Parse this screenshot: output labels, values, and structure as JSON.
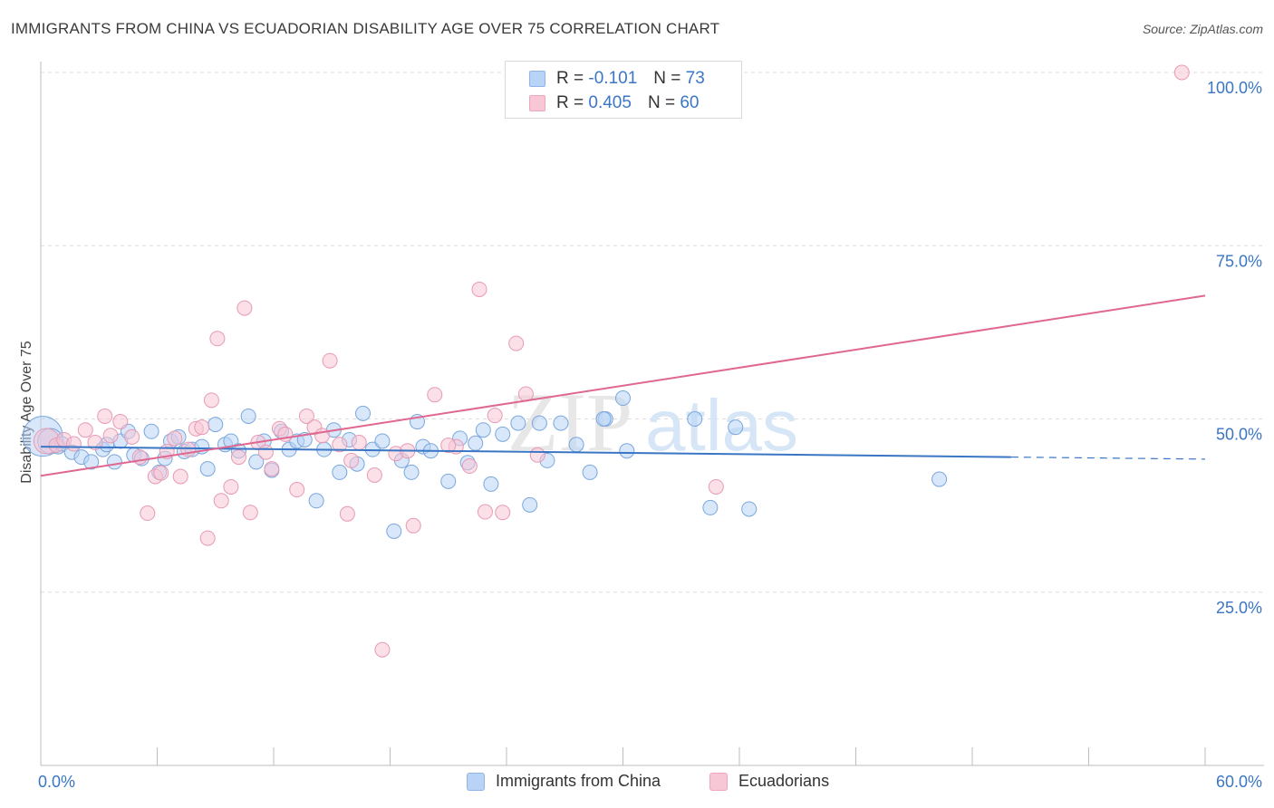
{
  "title": "IMMIGRANTS FROM CHINA VS ECUADORIAN DISABILITY AGE OVER 75 CORRELATION CHART",
  "source": "Source: ZipAtlas.com",
  "watermark": {
    "part1": "ZIP",
    "part2": "atlas"
  },
  "legend": {
    "r_label": "R =",
    "n_label": "N =",
    "series": [
      {
        "r": "-0.101",
        "n": "73",
        "color": "#b8d3f5"
      },
      {
        "r": "0.405",
        "n": "60",
        "color": "#f8c7d6"
      }
    ]
  },
  "bottom_legend": [
    "Immigrants from China",
    "Ecuadorians"
  ],
  "chart_data": {
    "type": "scatter",
    "ylabel": "Disability Age Over 75",
    "xlim": [
      0,
      60
    ],
    "ylim": [
      0,
      100
    ],
    "x_tick_labels": [
      "0.0%",
      "60.0%"
    ],
    "y_tick_labels": [
      "25.0%",
      "50.0%",
      "75.0%",
      "100.0%"
    ],
    "y_ticks": [
      25,
      50,
      75,
      100
    ],
    "grid": true,
    "colors": {
      "china": "#3a76c4",
      "china_fill": "#b8d3f5",
      "ecuador": "#e0678f",
      "ecuador_fill": "#f8c7d6"
    },
    "series": [
      {
        "name": "Immigrants from China",
        "trend": {
          "x": [
            0,
            50,
            60
          ],
          "y": [
            46.0,
            44.5,
            44.2
          ],
          "dashed_from": 50
        },
        "points": [
          [
            0.1,
            47.5,
            3
          ],
          [
            0.5,
            46.8,
            2
          ],
          [
            0.9,
            46.0,
            1
          ],
          [
            1.1,
            46.4,
            1
          ],
          [
            1.6,
            45.2,
            1
          ],
          [
            2.1,
            44.5,
            1
          ],
          [
            2.6,
            43.8,
            1
          ],
          [
            3.2,
            45.6,
            1
          ],
          [
            3.4,
            46.3,
            1
          ],
          [
            3.8,
            43.8,
            1
          ],
          [
            4.1,
            46.8,
            1
          ],
          [
            4.5,
            48.2,
            1
          ],
          [
            4.8,
            44.8,
            1
          ],
          [
            5.2,
            44.3,
            1
          ],
          [
            5.7,
            48.2,
            1
          ],
          [
            6.1,
            42.3,
            1
          ],
          [
            6.4,
            44.3,
            1
          ],
          [
            6.7,
            46.8,
            1
          ],
          [
            7.1,
            47.4,
            1
          ],
          [
            7.4,
            45.3,
            1
          ],
          [
            7.8,
            45.6,
            1
          ],
          [
            8.3,
            46.0,
            1
          ],
          [
            8.6,
            42.8,
            1
          ],
          [
            9.0,
            49.2,
            1
          ],
          [
            9.5,
            46.3,
            1
          ],
          [
            9.8,
            46.8,
            1
          ],
          [
            10.2,
            45.4,
            1
          ],
          [
            10.7,
            50.4,
            1
          ],
          [
            11.1,
            43.8,
            1
          ],
          [
            11.5,
            46.8,
            1
          ],
          [
            11.9,
            42.6,
            1
          ],
          [
            12.4,
            48.2,
            1
          ],
          [
            12.8,
            45.6,
            1
          ],
          [
            13.2,
            46.8,
            1
          ],
          [
            13.6,
            47.0,
            1
          ],
          [
            14.2,
            38.2,
            1
          ],
          [
            14.6,
            45.6,
            1
          ],
          [
            15.1,
            48.4,
            1
          ],
          [
            15.4,
            42.3,
            1
          ],
          [
            15.9,
            47.0,
            1
          ],
          [
            16.3,
            43.5,
            1
          ],
          [
            16.6,
            50.8,
            1
          ],
          [
            17.1,
            45.6,
            1
          ],
          [
            17.6,
            46.8,
            1
          ],
          [
            18.2,
            33.8,
            1
          ],
          [
            18.6,
            44.0,
            1
          ],
          [
            19.1,
            42.3,
            1
          ],
          [
            19.4,
            49.6,
            1
          ],
          [
            19.7,
            46.0,
            1
          ],
          [
            20.1,
            45.4,
            1
          ],
          [
            21.0,
            41.0,
            1
          ],
          [
            21.6,
            47.2,
            1
          ],
          [
            22.0,
            43.7,
            1
          ],
          [
            22.4,
            46.5,
            1
          ],
          [
            22.8,
            48.4,
            1
          ],
          [
            23.2,
            40.6,
            1
          ],
          [
            23.8,
            47.8,
            1
          ],
          [
            24.6,
            49.4,
            1
          ],
          [
            25.2,
            37.6,
            1
          ],
          [
            25.7,
            49.4,
            1
          ],
          [
            26.1,
            44.0,
            1
          ],
          [
            26.8,
            49.4,
            1
          ],
          [
            27.6,
            46.3,
            1
          ],
          [
            28.3,
            42.3,
            1
          ],
          [
            29.1,
            50.0,
            1
          ],
          [
            30.0,
            53.0,
            1
          ],
          [
            30.2,
            45.4,
            1
          ],
          [
            33.7,
            50.0,
            1
          ],
          [
            34.5,
            37.2,
            1
          ],
          [
            35.8,
            48.8,
            1
          ],
          [
            36.5,
            37.0,
            1
          ],
          [
            46.3,
            41.3,
            1
          ],
          [
            29.0,
            50.0,
            1
          ]
        ]
      },
      {
        "name": "Ecuadorians",
        "trend": {
          "x": [
            0,
            60
          ],
          "y": [
            41.8,
            67.8
          ]
        },
        "points": [
          [
            0.3,
            46.8,
            2
          ],
          [
            0.8,
            46.2,
            1
          ],
          [
            1.2,
            47.0,
            1
          ],
          [
            1.7,
            46.4,
            1
          ],
          [
            2.3,
            48.4,
            1
          ],
          [
            2.8,
            46.6,
            1
          ],
          [
            3.3,
            50.4,
            1
          ],
          [
            3.6,
            47.6,
            1
          ],
          [
            4.1,
            49.6,
            1
          ],
          [
            4.7,
            47.4,
            1
          ],
          [
            5.1,
            44.5,
            1
          ],
          [
            5.5,
            36.4,
            1
          ],
          [
            5.9,
            41.7,
            1
          ],
          [
            6.2,
            42.2,
            1
          ],
          [
            6.5,
            45.3,
            1
          ],
          [
            6.9,
            47.2,
            1
          ],
          [
            7.2,
            41.7,
            1
          ],
          [
            7.6,
            45.6,
            1
          ],
          [
            8.0,
            48.6,
            1
          ],
          [
            8.3,
            48.8,
            1
          ],
          [
            8.6,
            32.8,
            1
          ],
          [
            8.8,
            52.7,
            1
          ],
          [
            9.1,
            61.6,
            1
          ],
          [
            9.3,
            38.2,
            1
          ],
          [
            9.8,
            40.2,
            1
          ],
          [
            10.2,
            44.5,
            1
          ],
          [
            10.5,
            66.0,
            1
          ],
          [
            10.8,
            36.5,
            1
          ],
          [
            11.2,
            46.6,
            1
          ],
          [
            11.6,
            45.2,
            1
          ],
          [
            11.9,
            42.8,
            1
          ],
          [
            12.3,
            48.6,
            1
          ],
          [
            12.6,
            47.8,
            1
          ],
          [
            13.2,
            39.8,
            1
          ],
          [
            13.7,
            50.4,
            1
          ],
          [
            14.1,
            48.8,
            1
          ],
          [
            14.5,
            47.6,
            1
          ],
          [
            14.9,
            58.4,
            1
          ],
          [
            15.4,
            46.3,
            1
          ],
          [
            15.8,
            36.3,
            1
          ],
          [
            16.4,
            46.6,
            1
          ],
          [
            17.2,
            41.9,
            1
          ],
          [
            17.6,
            16.7,
            1
          ],
          [
            18.3,
            45.0,
            1
          ],
          [
            18.9,
            45.4,
            1
          ],
          [
            19.2,
            34.6,
            1
          ],
          [
            20.3,
            53.5,
            1
          ],
          [
            21.4,
            46.0,
            1
          ],
          [
            22.1,
            43.2,
            1
          ],
          [
            22.6,
            68.7,
            1
          ],
          [
            22.9,
            36.6,
            1
          ],
          [
            23.4,
            50.5,
            1
          ],
          [
            23.8,
            36.5,
            1
          ],
          [
            24.5,
            60.9,
            1
          ],
          [
            25.0,
            53.6,
            1
          ],
          [
            25.6,
            44.8,
            1
          ],
          [
            34.8,
            40.2,
            1
          ],
          [
            21.0,
            46.2,
            1
          ],
          [
            16.0,
            44.0,
            1
          ],
          [
            58.8,
            100.0,
            1
          ]
        ]
      }
    ]
  }
}
